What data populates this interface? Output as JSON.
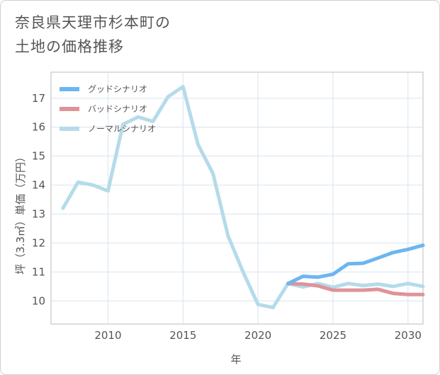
{
  "title_line1": "奈良県天理市杉本町の",
  "title_line2": "土地の価格推移",
  "chart_data": {
    "type": "line",
    "title": "奈良県天理市杉本町の土地の価格推移",
    "xlabel": "年",
    "ylabel": "坪（3.3㎡）単価（万円）",
    "xlim": [
      2006.2,
      2031
    ],
    "ylim": [
      9.2,
      17.9
    ],
    "x_ticks": [
      2010,
      2015,
      2020,
      2025,
      2030
    ],
    "y_ticks": [
      10,
      11,
      12,
      13,
      14,
      15,
      16,
      17
    ],
    "grid": true,
    "legend_position": "top-left",
    "series": [
      {
        "name": "グッドシナリオ",
        "color": "#6cb6f0",
        "x": [
          2022,
          2023,
          2024,
          2025,
          2026,
          2027,
          2028,
          2029,
          2030,
          2031
        ],
        "values": [
          10.6,
          10.85,
          10.82,
          10.92,
          11.28,
          11.3,
          11.48,
          11.67,
          11.78,
          11.92
        ]
      },
      {
        "name": "バッドシナリオ",
        "color": "#e0929a",
        "x": [
          2022,
          2023,
          2024,
          2025,
          2026,
          2027,
          2028,
          2029,
          2030,
          2031
        ],
        "values": [
          10.6,
          10.58,
          10.52,
          10.37,
          10.37,
          10.37,
          10.4,
          10.26,
          10.22,
          10.22
        ]
      },
      {
        "name": "ノーマルシナリオ",
        "color": "#b5dbea",
        "x": [
          2007,
          2008,
          2009,
          2010,
          2011,
          2012,
          2013,
          2014,
          2015,
          2016,
          2017,
          2018,
          2019,
          2020,
          2021,
          2022,
          2023,
          2024,
          2025,
          2026,
          2027,
          2028,
          2029,
          2030,
          2031
        ],
        "values": [
          13.2,
          14.1,
          14.0,
          13.8,
          16.1,
          16.35,
          16.2,
          17.05,
          17.4,
          15.4,
          14.4,
          12.25,
          11.0,
          9.88,
          9.77,
          10.6,
          10.48,
          10.6,
          10.47,
          10.6,
          10.53,
          10.58,
          10.5,
          10.6,
          10.5
        ]
      }
    ]
  }
}
